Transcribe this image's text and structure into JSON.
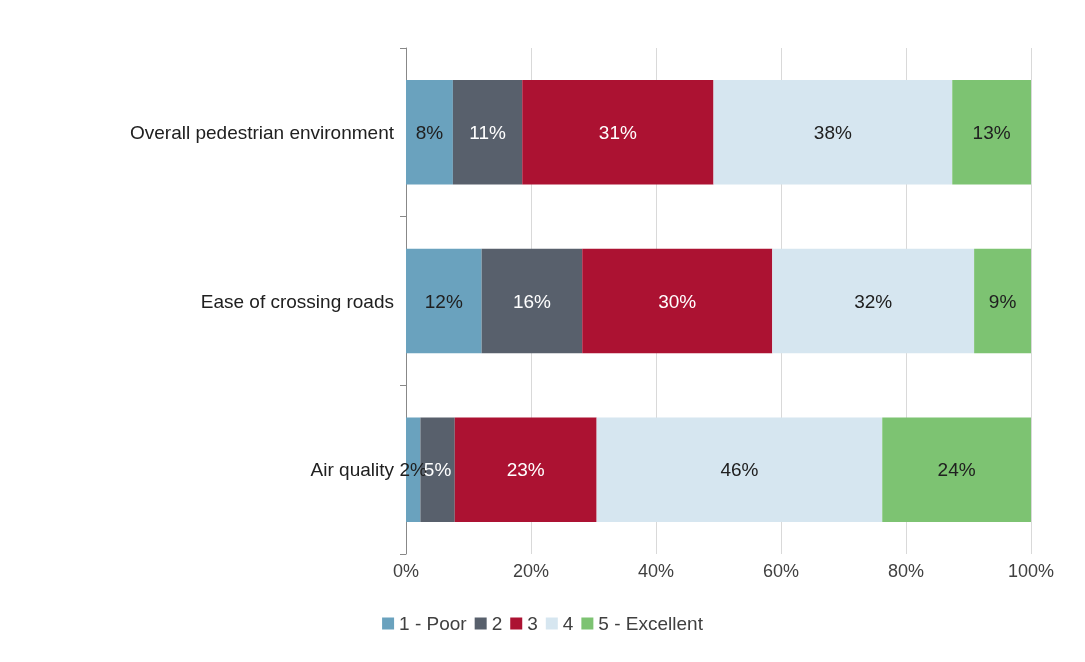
{
  "chart_data": {
    "type": "bar",
    "orientation": "horizontal",
    "stacked": true,
    "categories": [
      "Overall pedestrian environment",
      "Ease of crossing roads",
      "Air quality"
    ],
    "series": [
      {
        "name": "1 - Poor",
        "color": "#6aa2be",
        "values": [
          7.5,
          12.1,
          2.3
        ],
        "value_labels": [
          "8%",
          "12%",
          "2%"
        ]
      },
      {
        "name": "2",
        "color": "#58606c",
        "values": [
          11.1,
          16.1,
          5.5
        ],
        "value_labels": [
          "11%",
          "16%",
          "5%"
        ]
      },
      {
        "name": "3",
        "color": "#ac1232",
        "values": [
          30.6,
          30.4,
          22.7
        ],
        "value_labels": [
          "31%",
          "30%",
          "23%"
        ]
      },
      {
        "name": "4",
        "color": "#d6e6f0",
        "values": [
          38.2,
          32.3,
          45.7
        ],
        "value_labels": [
          "38%",
          "32%",
          "46%"
        ]
      },
      {
        "name": "5 - Excellent",
        "color": "#7dc372",
        "values": [
          12.6,
          9.1,
          23.8
        ],
        "value_labels": [
          "13%",
          "9%",
          "24%"
        ]
      }
    ],
    "xlim": [
      0,
      100
    ],
    "xticks": [
      {
        "value": 0,
        "label": "0%"
      },
      {
        "value": 20,
        "label": "20%"
      },
      {
        "value": 40,
        "label": "40%"
      },
      {
        "value": 60,
        "label": "60%"
      },
      {
        "value": 80,
        "label": "80%"
      },
      {
        "value": 100,
        "label": "100%"
      }
    ],
    "grid": "x",
    "legend": "bottom"
  }
}
